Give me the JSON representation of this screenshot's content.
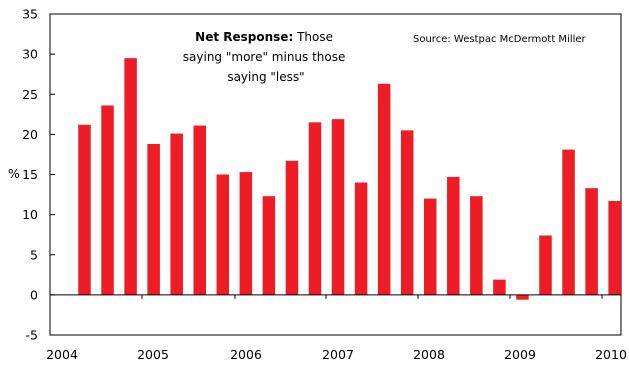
{
  "chart_data": {
    "type": "bar",
    "ylabel": "%",
    "ylim": [
      -5,
      35
    ],
    "yticks": [
      "35",
      "30",
      "25",
      "20",
      "15",
      "10",
      "5",
      "0",
      "-5"
    ],
    "xticks": [
      "2004",
      "2005",
      "2006",
      "2007",
      "2008",
      "2009",
      "2010"
    ],
    "bar_color": "#ee1c25",
    "series": [
      {
        "values": [
          21.2,
          23.6,
          29.5,
          18.8,
          20.1,
          21.1,
          15.0,
          15.3,
          12.3,
          16.7,
          21.5,
          21.9,
          14.0,
          26.3,
          20.5,
          12.0,
          14.7,
          12.3,
          1.9,
          -0.6,
          7.4,
          18.1,
          13.3,
          11.7
        ]
      }
    ],
    "annotation": {
      "bold": "Net Response:",
      "line1_rest": "  Those",
      "line2": "saying \"more\" minus those",
      "line3": "saying \"less\""
    },
    "source": "Source:  Westpac McDermott Miller"
  }
}
